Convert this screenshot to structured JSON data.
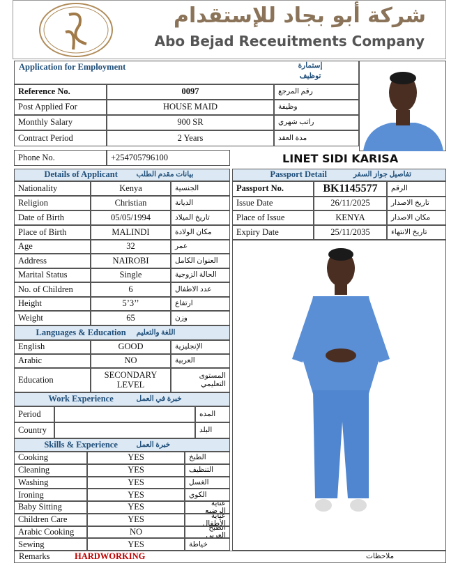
{
  "header": {
    "company_ar": "شركة أبو بجاد للإستقدام",
    "company_en": "Abo Bejad Receuitments Company"
  },
  "application": {
    "title": "Application for Employment",
    "title_ar_1": "إستمارة",
    "title_ar_2": "توظيف"
  },
  "main_rows": [
    [
      "Reference No.",
      "0097",
      "رقم المرجع"
    ],
    [
      "Post Applied For",
      "HOUSE MAID",
      "وظيفة"
    ],
    [
      "Monthly Salary",
      "900 SR",
      "راتب شهري"
    ],
    [
      "Contract Period",
      "2 Years",
      "مدة العقد"
    ],
    [
      "Phone No.",
      "+254705796100"
    ]
  ],
  "name": "LINET SIDI KARISA",
  "applicant": {
    "title": "Details of Applicant",
    "title_ar": "بيانات مقدم الطلب",
    "rows": [
      [
        "Nationality",
        "Kenya",
        "الجنسية"
      ],
      [
        "Religion",
        "Christian",
        "الديانة"
      ],
      [
        "Date of Birth",
        "05/05/1994",
        "تاريخ الميلاد"
      ],
      [
        "Place of Birth",
        "MALINDI",
        "مكان الولادة"
      ],
      [
        "Age",
        "32",
        "عمر"
      ],
      [
        "Address",
        "NAIROBI",
        "العنوان الكامل"
      ],
      [
        "Marital Status",
        "Single",
        "الحالة الزوجية"
      ],
      [
        "No. of Children",
        "6",
        "عدد الاطفال"
      ],
      [
        "Height",
        "5’3’’",
        "ارتفاع"
      ],
      [
        "Weight",
        "65",
        "وزن"
      ]
    ]
  },
  "passport": {
    "title": "Passport Detail",
    "title_ar": "تفاصيل جواز السفر",
    "rows": [
      [
        "Passport No.",
        "BK1145577",
        "الرقم"
      ],
      [
        "Issue Date",
        "26/11/2025",
        "تاريخ الاصدار"
      ],
      [
        "Place of Issue",
        "KENYA",
        "مكان الاصدار"
      ],
      [
        "Expiry Date",
        "25/11/2035",
        "تاريخ الانتهاء"
      ]
    ]
  },
  "languages": {
    "title": "Languages & Education",
    "title_ar": "اللغة والتعليم",
    "rows": [
      [
        "English",
        "GOOD",
        "الإنجليزية"
      ],
      [
        "Arabic",
        "NO",
        "العربية"
      ],
      [
        "Education",
        "SECONDARY LEVEL",
        "المستوى التعليمي"
      ]
    ]
  },
  "work": {
    "title": "Work Experience",
    "title_ar": "خبرة في العمل",
    "rows": [
      [
        "Period",
        "المده"
      ],
      [
        "Country",
        "البلد"
      ]
    ]
  },
  "skills": {
    "title": "Skills & Experience",
    "title_ar": "خبرة العمل",
    "rows": [
      [
        "Cooking",
        "YES",
        "الطبخ"
      ],
      [
        "Cleaning",
        "YES",
        "التنظيف"
      ],
      [
        "Washing",
        "YES",
        "الغسل"
      ],
      [
        "Ironing",
        "YES",
        "الكوي"
      ],
      [
        "Baby Sitting",
        "YES",
        "عناية الرضيع"
      ],
      [
        "Children Care",
        "YES",
        "عناية الأطفال"
      ],
      [
        "Arabic Cooking",
        "NO",
        "الطبخ العربي"
      ],
      [
        "Sewing",
        "YES",
        "خياطة"
      ]
    ]
  },
  "remarks": {
    "label": "Remarks",
    "value": "HARDWORKING",
    "label_ar": "ملاحظات"
  }
}
